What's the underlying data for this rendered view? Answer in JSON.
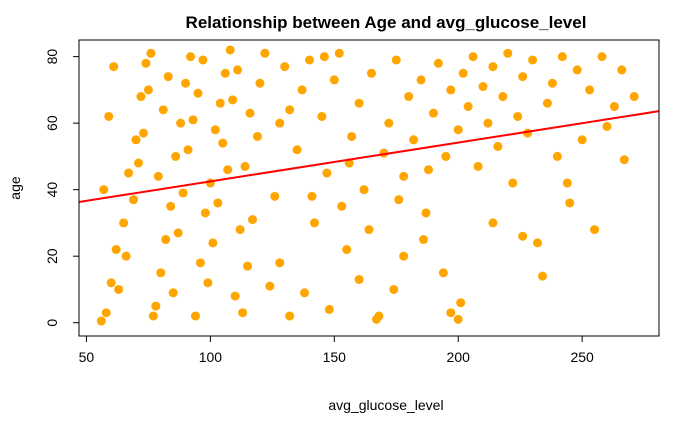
{
  "chart_data": {
    "type": "scatter",
    "title": "Relationship between Age and avg_glucose_level",
    "xlabel": "avg_glucose_level",
    "ylabel": "age",
    "xlim": [
      47,
      281
    ],
    "ylim": [
      -4,
      85
    ],
    "xticks": [
      50,
      100,
      150,
      200,
      250
    ],
    "yticks": [
      0,
      20,
      40,
      60,
      80
    ],
    "point_color": "#FFA500",
    "line_color": "#FF0000",
    "regression_line": {
      "x": [
        47,
        281
      ],
      "y": [
        36.3,
        63.6
      ]
    },
    "points": [
      {
        "x": 56,
        "y": 0.5
      },
      {
        "x": 58,
        "y": 3
      },
      {
        "x": 60,
        "y": 12
      },
      {
        "x": 62,
        "y": 22
      },
      {
        "x": 65,
        "y": 30
      },
      {
        "x": 67,
        "y": 45
      },
      {
        "x": 70,
        "y": 55
      },
      {
        "x": 72,
        "y": 68
      },
      {
        "x": 74,
        "y": 78
      },
      {
        "x": 76,
        "y": 81
      },
      {
        "x": 78,
        "y": 5
      },
      {
        "x": 80,
        "y": 15
      },
      {
        "x": 82,
        "y": 25
      },
      {
        "x": 84,
        "y": 35
      },
      {
        "x": 86,
        "y": 50
      },
      {
        "x": 88,
        "y": 60
      },
      {
        "x": 90,
        "y": 72
      },
      {
        "x": 92,
        "y": 80
      },
      {
        "x": 94,
        "y": 2
      },
      {
        "x": 96,
        "y": 18
      },
      {
        "x": 98,
        "y": 33
      },
      {
        "x": 100,
        "y": 42
      },
      {
        "x": 102,
        "y": 58
      },
      {
        "x": 104,
        "y": 66
      },
      {
        "x": 106,
        "y": 75
      },
      {
        "x": 108,
        "y": 82
      },
      {
        "x": 110,
        "y": 8
      },
      {
        "x": 112,
        "y": 28
      },
      {
        "x": 114,
        "y": 47
      },
      {
        "x": 116,
        "y": 63
      },
      {
        "x": 57,
        "y": 40
      },
      {
        "x": 59,
        "y": 62
      },
      {
        "x": 61,
        "y": 77
      },
      {
        "x": 63,
        "y": 10
      },
      {
        "x": 66,
        "y": 20
      },
      {
        "x": 69,
        "y": 37
      },
      {
        "x": 71,
        "y": 48
      },
      {
        "x": 73,
        "y": 57
      },
      {
        "x": 75,
        "y": 70
      },
      {
        "x": 77,
        "y": 2
      },
      {
        "x": 79,
        "y": 44
      },
      {
        "x": 81,
        "y": 64
      },
      {
        "x": 83,
        "y": 74
      },
      {
        "x": 85,
        "y": 9
      },
      {
        "x": 87,
        "y": 27
      },
      {
        "x": 89,
        "y": 39
      },
      {
        "x": 91,
        "y": 52
      },
      {
        "x": 93,
        "y": 61
      },
      {
        "x": 95,
        "y": 69
      },
      {
        "x": 97,
        "y": 79
      },
      {
        "x": 99,
        "y": 12
      },
      {
        "x": 101,
        "y": 24
      },
      {
        "x": 103,
        "y": 36
      },
      {
        "x": 105,
        "y": 54
      },
      {
        "x": 107,
        "y": 46
      },
      {
        "x": 109,
        "y": 67
      },
      {
        "x": 111,
        "y": 76
      },
      {
        "x": 113,
        "y": 3
      },
      {
        "x": 115,
        "y": 17
      },
      {
        "x": 117,
        "y": 31
      },
      {
        "x": 119,
        "y": 56
      },
      {
        "x": 120,
        "y": 72
      },
      {
        "x": 122,
        "y": 81
      },
      {
        "x": 124,
        "y": 11
      },
      {
        "x": 126,
        "y": 38
      },
      {
        "x": 128,
        "y": 60
      },
      {
        "x": 130,
        "y": 77
      },
      {
        "x": 132,
        "y": 2
      },
      {
        "x": 135,
        "y": 52
      },
      {
        "x": 137,
        "y": 70
      },
      {
        "x": 140,
        "y": 79
      },
      {
        "x": 142,
        "y": 30
      },
      {
        "x": 145,
        "y": 62
      },
      {
        "x": 147,
        "y": 45
      },
      {
        "x": 150,
        "y": 73
      },
      {
        "x": 152,
        "y": 81
      },
      {
        "x": 155,
        "y": 22
      },
      {
        "x": 157,
        "y": 56
      },
      {
        "x": 160,
        "y": 66
      },
      {
        "x": 162,
        "y": 40
      },
      {
        "x": 165,
        "y": 75
      },
      {
        "x": 167,
        "y": 1
      },
      {
        "x": 170,
        "y": 51
      },
      {
        "x": 172,
        "y": 60
      },
      {
        "x": 175,
        "y": 79
      },
      {
        "x": 178,
        "y": 44
      },
      {
        "x": 180,
        "y": 68
      },
      {
        "x": 182,
        "y": 55
      },
      {
        "x": 185,
        "y": 73
      },
      {
        "x": 187,
        "y": 33
      },
      {
        "x": 190,
        "y": 63
      },
      {
        "x": 192,
        "y": 78
      },
      {
        "x": 195,
        "y": 50
      },
      {
        "x": 197,
        "y": 70
      },
      {
        "x": 200,
        "y": 1
      },
      {
        "x": 200,
        "y": 58
      },
      {
        "x": 202,
        "y": 75
      },
      {
        "x": 204,
        "y": 65
      },
      {
        "x": 206,
        "y": 80
      },
      {
        "x": 208,
        "y": 47
      },
      {
        "x": 210,
        "y": 71
      },
      {
        "x": 212,
        "y": 60
      },
      {
        "x": 214,
        "y": 77
      },
      {
        "x": 216,
        "y": 53
      },
      {
        "x": 218,
        "y": 68
      },
      {
        "x": 220,
        "y": 81
      },
      {
        "x": 222,
        "y": 42
      },
      {
        "x": 224,
        "y": 62
      },
      {
        "x": 226,
        "y": 74
      },
      {
        "x": 228,
        "y": 57
      },
      {
        "x": 230,
        "y": 79
      },
      {
        "x": 232,
        "y": 24
      },
      {
        "x": 234,
        "y": 14
      },
      {
        "x": 236,
        "y": 66
      },
      {
        "x": 238,
        "y": 72
      },
      {
        "x": 240,
        "y": 50
      },
      {
        "x": 242,
        "y": 80
      },
      {
        "x": 245,
        "y": 36
      },
      {
        "x": 248,
        "y": 76
      },
      {
        "x": 250,
        "y": 55
      },
      {
        "x": 253,
        "y": 70
      },
      {
        "x": 255,
        "y": 28
      },
      {
        "x": 258,
        "y": 80
      },
      {
        "x": 260,
        "y": 59
      },
      {
        "x": 263,
        "y": 65
      },
      {
        "x": 267,
        "y": 49
      },
      {
        "x": 266,
        "y": 76
      },
      {
        "x": 271,
        "y": 68
      },
      {
        "x": 194,
        "y": 15
      },
      {
        "x": 197,
        "y": 3
      },
      {
        "x": 201,
        "y": 6
      },
      {
        "x": 178,
        "y": 20
      },
      {
        "x": 168,
        "y": 2
      },
      {
        "x": 160,
        "y": 13
      },
      {
        "x": 148,
        "y": 4
      },
      {
        "x": 138,
        "y": 9
      },
      {
        "x": 128,
        "y": 18
      },
      {
        "x": 141,
        "y": 38
      },
      {
        "x": 153,
        "y": 35
      },
      {
        "x": 164,
        "y": 28
      },
      {
        "x": 174,
        "y": 10
      },
      {
        "x": 186,
        "y": 25
      },
      {
        "x": 214,
        "y": 30
      },
      {
        "x": 226,
        "y": 26
      },
      {
        "x": 244,
        "y": 42
      },
      {
        "x": 132,
        "y": 64
      },
      {
        "x": 146,
        "y": 80
      },
      {
        "x": 156,
        "y": 48
      },
      {
        "x": 176,
        "y": 37
      },
      {
        "x": 188,
        "y": 46
      }
    ]
  }
}
